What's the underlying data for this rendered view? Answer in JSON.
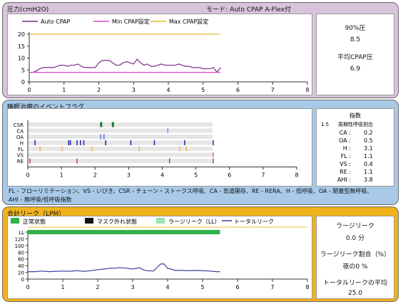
{
  "pressure": {
    "title": "圧力(cmH2O)",
    "mode": "モード: Auto CPAP A-Flex付",
    "stats": {
      "p90_label": "90%圧",
      "p90_value": "8.5",
      "avg_label": "平均CPAP圧",
      "avg_value": "6.9"
    }
  },
  "events": {
    "title": "睡眠治療のイベントフラグ",
    "index": {
      "header": "指数",
      "scale": "1.5",
      "ratio_label": "周期性呼吸割合",
      "rows": [
        {
          "label": "CA :",
          "value": "0.2"
        },
        {
          "label": "OA :",
          "value": "0.5"
        },
        {
          "label": "H :",
          "value": "3.1"
        },
        {
          "label": "FL :",
          "value": "1.1"
        },
        {
          "label": "VS :",
          "value": "0.4"
        },
        {
          "label": "RE :",
          "value": "1.1"
        },
        {
          "label": "AHI :",
          "value": "3.8"
        }
      ]
    },
    "legend_line1": "FL - フローリミテーション、VS - いびき、CSR - チェーン・ストークス呼吸、CA - 気道開存、RE - RERA、H - 低呼吸、OA - 閉塞型無呼吸、",
    "legend_line2": "AHI - 無呼吸/低呼吸指数"
  },
  "leak": {
    "title": "合計リーク（LPM）",
    "stats": {
      "large_label": "ラージリーク",
      "large_value": "0.0  分",
      "ratio_label": "ラージリーク割合（%）",
      "ratio_value": "夜の0 %",
      "avg_label": "トータルリークの平均",
      "avg_value": "25.0"
    }
  },
  "colors": {
    "auto": "#7b2d8b",
    "min": "#e040c8",
    "max": "#e8b830",
    "normal": "#2db24a",
    "mask": "#111111",
    "large": "#98e3b0",
    "total": "#3a3f9e",
    "csr": "#1a7a3a",
    "ca": "#c064d8",
    "oa": "#5078e0",
    "h": "#2020b0",
    "fl": "#f0b840",
    "vs": "#e06a6a",
    "re": "#c04040"
  },
  "chart_data": [
    {
      "type": "line",
      "x_ticks": [
        "0",
        "1",
        "2",
        "3",
        "4",
        "5",
        "6",
        "7",
        "8"
      ],
      "y_ticks": [
        "0",
        "5",
        "10",
        "15",
        "20"
      ],
      "xlim": [
        0,
        8
      ],
      "ylim": [
        0,
        20
      ],
      "series": [
        {
          "name": "Auto CPAP",
          "x": [
            0,
            0.1,
            0.2,
            0.3,
            0.4,
            0.5,
            0.6,
            0.7,
            0.8,
            0.9,
            1.0,
            1.1,
            1.2,
            1.3,
            1.4,
            1.5,
            1.6,
            1.7,
            1.8,
            1.9,
            2.0,
            2.1,
            2.2,
            2.3,
            2.4,
            2.5,
            2.6,
            2.7,
            2.8,
            2.9,
            3.0,
            3.1,
            3.2,
            3.3,
            3.4,
            3.5,
            3.6,
            3.7,
            3.8,
            3.9,
            4.0,
            4.1,
            4.2,
            4.3,
            4.4,
            4.5,
            4.6,
            4.7,
            4.8,
            4.9,
            5.0,
            5.1,
            5.2,
            5.3,
            5.4,
            5.5
          ],
          "y": [
            4,
            4,
            4.5,
            5.5,
            6,
            6,
            6,
            6,
            6.5,
            7,
            7,
            6.5,
            7,
            7,
            7.5,
            6.5,
            6,
            6,
            6,
            6,
            8,
            9,
            9,
            9,
            8,
            7,
            7,
            8,
            8.5,
            8,
            7.5,
            9.5,
            8,
            7,
            7.5,
            6.5,
            6.5,
            7,
            7.5,
            7,
            7,
            7,
            7,
            7.5,
            7,
            6.5,
            6.5,
            6,
            6,
            6,
            5.5,
            5.5,
            5.5,
            6,
            4,
            6
          ]
        },
        {
          "name": "Min  CPAP設定",
          "x": [
            0,
            5.5
          ],
          "y": [
            4,
            4
          ]
        },
        {
          "name": "Max  CPAP設定",
          "x": [
            0,
            5.5
          ],
          "y": [
            20,
            20
          ]
        }
      ]
    },
    {
      "type": "scatter",
      "x_ticks": [
        "0",
        "1",
        "2",
        "3",
        "4",
        "5",
        "6",
        "7",
        "8"
      ],
      "xlim": [
        0,
        8
      ],
      "categories": [
        "CSR",
        "CA",
        "OA",
        "H",
        "FL",
        "VS",
        "RE"
      ],
      "series": [
        {
          "name": "CSR",
          "x": [
            2.15,
            2.5
          ]
        },
        {
          "name": "CA",
          "x": [
            4.15
          ]
        },
        {
          "name": "OA",
          "x": [
            2.15,
            2.25
          ]
        },
        {
          "name": "H",
          "x": [
            0.2,
            1.2,
            1.25,
            1.45,
            1.55,
            1.65,
            2.3,
            3.05,
            3.75,
            4.65,
            5.5
          ]
        },
        {
          "name": "FL",
          "x": [
            0.35,
            1.0,
            1.9,
            3.3,
            4.5,
            4.7
          ]
        },
        {
          "name": "VS",
          "x": [
            5.5
          ]
        },
        {
          "name": "RE",
          "x": [
            0.05,
            1.45,
            4.2,
            5.5
          ]
        }
      ]
    },
    {
      "type": "line",
      "x_ticks": [
        "0",
        "1",
        "2",
        "3",
        "4",
        "5",
        "6",
        "7",
        "8"
      ],
      "y_ticks": [
        "0",
        "20",
        "40",
        "60",
        "80",
        "100",
        "120",
        "LL"
      ],
      "xlim": [
        0,
        8
      ],
      "ylim": [
        0,
        140
      ],
      "legend": [
        "正常状態",
        "マスク外れ状態",
        "ラージリーク（LL）",
        "トータルリーク"
      ],
      "series": [
        {
          "name": "正常状態",
          "x": [
            0,
            5.5
          ],
          "y": [
            140,
            140
          ]
        },
        {
          "name": "トータルリーク",
          "x": [
            0,
            0.2,
            0.4,
            0.5,
            0.6,
            0.8,
            1.0,
            1.2,
            1.4,
            1.5,
            1.6,
            1.8,
            2.0,
            2.2,
            2.4,
            2.5,
            2.6,
            2.8,
            3.0,
            3.2,
            3.3,
            3.4,
            3.6,
            3.7,
            3.8,
            3.9,
            4.0,
            4.1,
            4.2,
            4.4,
            4.6,
            4.8,
            5.0,
            5.2,
            5.4,
            5.5
          ],
          "y": [
            22,
            22,
            24,
            23,
            22,
            23,
            24,
            23,
            25,
            24,
            23,
            25,
            28,
            30,
            33,
            32,
            34,
            33,
            30,
            34,
            28,
            25,
            24,
            35,
            45,
            45,
            32,
            30,
            26,
            26,
            25,
            26,
            25,
            24,
            22,
            22
          ]
        }
      ]
    }
  ]
}
